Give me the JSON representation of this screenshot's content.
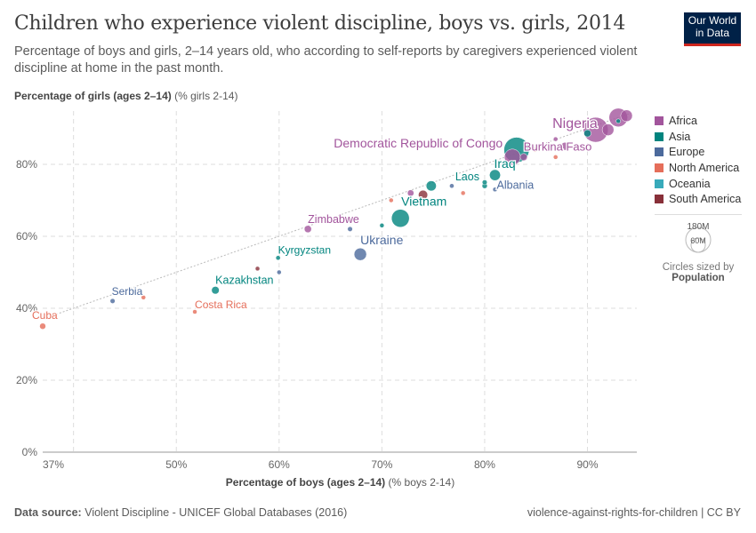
{
  "header": {
    "title": "Children who experience violent discipline, boys vs. girls, 2014",
    "subtitle": "Percentage of boys and girls, 2–14 years old, who according to self-reports by caregivers experienced violent discipline at home in the past month.",
    "logo_line1": "Our World",
    "logo_line2": "in Data"
  },
  "footer": {
    "source_label": "Data source:",
    "source": "Violent Discipline - UNICEF Global Databases (2016)",
    "slug": "violence-against-rights-for-children | CC BY"
  },
  "legend": {
    "regions": [
      {
        "name": "Africa",
        "color": "#a2559c"
      },
      {
        "name": "Asia",
        "color": "#00847e"
      },
      {
        "name": "Europe",
        "color": "#4c6a9c"
      },
      {
        "name": "North America",
        "color": "#e56e5a"
      },
      {
        "name": "Oceania",
        "color": "#38aaba"
      },
      {
        "name": "South America",
        "color": "#883039"
      }
    ],
    "size_big": "180M",
    "size_small": "60M",
    "size_caption": "Circles sized by",
    "size_var": "Population"
  },
  "chart_data": {
    "type": "scatter",
    "xlabel_bold": "Percentage of boys (ages 2–14)",
    "xlabel_unit": "(% boys 2-14)",
    "ylabel_bold": "Percentage of girls (ages 2–14)",
    "ylabel_unit": "(% girls 2-14)",
    "xlim": [
      37,
      94.8
    ],
    "ylim": [
      0,
      94.8
    ],
    "grid": true,
    "legend": "right",
    "x_ticks": [
      "37%",
      "50%",
      "60%",
      "70%",
      "80%",
      "90%"
    ],
    "x_tick_values": [
      37,
      50,
      60,
      70,
      80,
      90
    ],
    "x_gridlines": [
      40,
      50,
      60,
      70,
      80,
      90
    ],
    "y_ticks": [
      "0%",
      "20%",
      "40%",
      "60%",
      "80%"
    ],
    "y_tick_values": [
      0,
      20,
      40,
      60,
      80
    ],
    "points": [
      {
        "label": "Cuba",
        "x": 37,
        "y": 35,
        "pop": 11,
        "region": "North America"
      },
      {
        "label": "Serbia",
        "x": 43.8,
        "y": 42,
        "pop": 7,
        "region": "Europe"
      },
      {
        "x": 46.8,
        "y": 43,
        "pop": 1,
        "region": "North America"
      },
      {
        "label": "Costa Rica",
        "x": 51.8,
        "y": 39,
        "pop": 5,
        "region": "North America"
      },
      {
        "label": "Kazakhstan",
        "x": 53.8,
        "y": 45,
        "pop": 17,
        "region": "Asia"
      },
      {
        "x": 57.9,
        "y": 51,
        "pop": 3,
        "region": "South America"
      },
      {
        "label": "Kyrgyzstan",
        "x": 59.9,
        "y": 54,
        "pop": 6,
        "region": "Asia"
      },
      {
        "x": 60,
        "y": 50,
        "pop": 3,
        "region": "Europe"
      },
      {
        "label": "Zimbabwe",
        "x": 62.8,
        "y": 62,
        "pop": 15,
        "region": "Africa"
      },
      {
        "x": 66.9,
        "y": 62,
        "pop": 7,
        "region": "Europe"
      },
      {
        "label": "Ukraine",
        "x": 67.9,
        "y": 55,
        "pop": 45,
        "region": "Europe"
      },
      {
        "x": 70,
        "y": 63,
        "pop": 3,
        "region": "Asia"
      },
      {
        "x": 70.9,
        "y": 70,
        "pop": 2,
        "region": "North America"
      },
      {
        "label": "Vietnam",
        "x": 71.8,
        "y": 65,
        "pop": 92,
        "region": "Asia"
      },
      {
        "x": 72.8,
        "y": 72,
        "pop": 12,
        "region": "Africa"
      },
      {
        "x": 74,
        "y": 71.5,
        "pop": 25,
        "region": "South America"
      },
      {
        "x": 74.8,
        "y": 74,
        "pop": 30,
        "region": "Asia"
      },
      {
        "x": 76.8,
        "y": 74,
        "pop": 6,
        "region": "Europe"
      },
      {
        "x": 77.9,
        "y": 72,
        "pop": 2,
        "region": "North America"
      },
      {
        "x": 80,
        "y": 74,
        "pop": 8,
        "region": "Asia"
      },
      {
        "label": "Laos",
        "x": 80,
        "y": 75,
        "pop": 7,
        "region": "Asia"
      },
      {
        "label": "Albania",
        "x": 81,
        "y": 73,
        "pop": 3,
        "region": "Europe"
      },
      {
        "label": "Iraq",
        "x": 81,
        "y": 77,
        "pop": 35,
        "region": "Asia"
      },
      {
        "x": 83.1,
        "y": 84,
        "pop": 185,
        "region": "Asia"
      },
      {
        "label": "Democratic Republic of Congo",
        "x": 82.7,
        "y": 82,
        "pop": 75,
        "region": "Africa"
      },
      {
        "x": 83.8,
        "y": 82,
        "pop": 15,
        "region": "Africa"
      },
      {
        "x": 84.9,
        "y": 84,
        "pop": 3,
        "region": "North America"
      },
      {
        "x": 86.9,
        "y": 87,
        "pop": 4,
        "region": "Africa"
      },
      {
        "x": 86.9,
        "y": 82,
        "pop": 2,
        "region": "North America"
      },
      {
        "label": "Burkina Faso",
        "x": 87.8,
        "y": 85,
        "pop": 18,
        "region": "Africa"
      },
      {
        "x": 90,
        "y": 88.6,
        "pop": 15,
        "region": "Asia"
      },
      {
        "label": "Nigeria",
        "x": 90.8,
        "y": 89.6,
        "pop": 180,
        "region": "Africa"
      },
      {
        "x": 92,
        "y": 89.6,
        "pop": 40,
        "region": "Africa"
      },
      {
        "x": 93,
        "y": 93,
        "pop": 100,
        "region": "Africa"
      },
      {
        "x": 93,
        "y": 92,
        "pop": 3,
        "region": "Asia"
      },
      {
        "x": 93.8,
        "y": 93.5,
        "pop": 40,
        "region": "Africa"
      }
    ]
  }
}
